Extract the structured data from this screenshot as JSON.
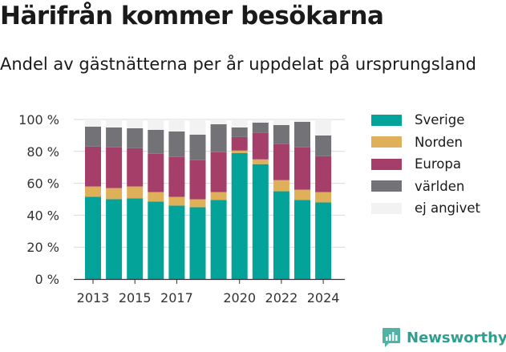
{
  "title": "Härifrån kommer besökarna",
  "subtitle": "Andel av gästnätterna per år uppdelat på ursprungsland",
  "brand": "Newsworthy",
  "colors": {
    "Sverige": "#04a39a",
    "Norden": "#dfb05a",
    "Europa": "#a53f6a",
    "världen": "#737377",
    "ej angivet": "#f2f2f2"
  },
  "chart_data": {
    "type": "bar",
    "stacked": true,
    "categories": [
      "2013",
      "2014",
      "2015",
      "2016",
      "2017",
      "2018",
      "2019",
      "2020",
      "2021",
      "2022",
      "2023",
      "2024"
    ],
    "x_tick_labels": [
      "2013",
      "2015",
      "2017",
      "2020",
      "2022",
      "2024"
    ],
    "y_tick_labels": [
      "0 %",
      "20 %",
      "40 %",
      "60 %",
      "80 %",
      "100 %"
    ],
    "ylim": [
      0,
      100
    ],
    "grid": true,
    "legend_position": "right",
    "series": [
      {
        "name": "Sverige",
        "values": [
          51.5,
          50,
          50.5,
          48.5,
          46,
          45,
          49.5,
          79,
          72,
          55,
          49.5,
          48
        ]
      },
      {
        "name": "Norden",
        "values": [
          6.5,
          7,
          7.5,
          6,
          5.5,
          5,
          5,
          1.5,
          3,
          7,
          6.5,
          6.5
        ]
      },
      {
        "name": "Europa",
        "values": [
          25,
          25.5,
          24,
          24,
          25,
          24.5,
          25,
          8.5,
          16.5,
          22.5,
          26.5,
          22.5
        ]
      },
      {
        "name": "världen",
        "values": [
          12.5,
          12.5,
          12.5,
          15,
          16,
          16,
          17.5,
          6,
          6.5,
          12,
          16,
          13
        ]
      },
      {
        "name": "ej angivet",
        "values": [
          4.5,
          5,
          5.5,
          6.5,
          7.5,
          9.5,
          3,
          5,
          2,
          3.5,
          1.5,
          10
        ]
      }
    ]
  },
  "legend": [
    "Sverige",
    "Norden",
    "Europa",
    "världen",
    "ej angivet"
  ]
}
